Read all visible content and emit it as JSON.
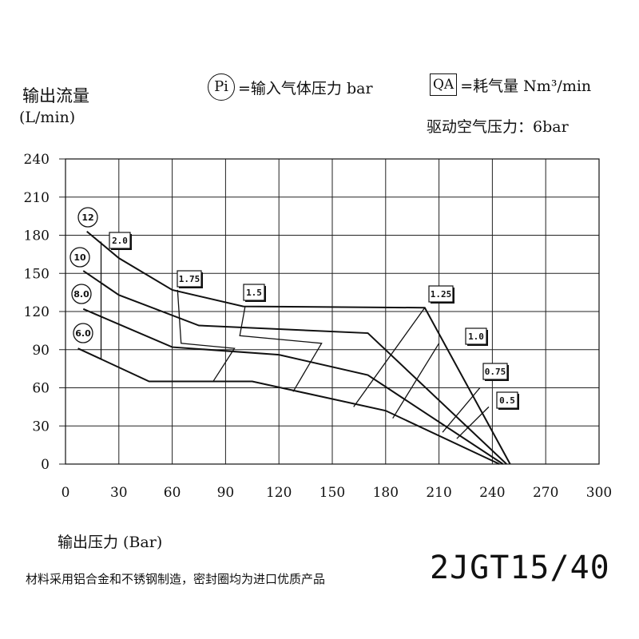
{
  "legend": {
    "pi_badge": "Pi",
    "pi_text": "=输入气体压力 bar",
    "qa_badge": "QA",
    "qa_text": "=耗气量 Nm³/min",
    "drive_pressure": "驱动空气压力：6bar"
  },
  "model": "2JGT15/40",
  "footer_note": "材料采用铝合金和不锈钢制造，密封圈均为进口优质产品",
  "chart_data": {
    "type": "line",
    "ylabel_line1": "输出流量",
    "ylabel_line2": "(L/min)",
    "xlabel": "输出压力 (Bar)",
    "xlim": [
      0,
      300
    ],
    "ylim": [
      0,
      240
    ],
    "xticks": [
      0,
      30,
      60,
      90,
      120,
      150,
      180,
      210,
      240,
      270,
      300
    ],
    "yticks": [
      0,
      30,
      60,
      90,
      120,
      150,
      180,
      210,
      240
    ],
    "grid": true,
    "series": [
      {
        "name": "12",
        "points": [
          [
            12,
            183
          ],
          [
            30,
            162
          ],
          [
            60,
            137
          ],
          [
            100,
            124
          ],
          [
            202,
            123
          ],
          [
            250,
            0
          ]
        ]
      },
      {
        "name": "10",
        "points": [
          [
            10,
            152
          ],
          [
            30,
            133
          ],
          [
            75,
            109
          ],
          [
            170,
            103
          ],
          [
            248,
            0
          ]
        ]
      },
      {
        "name": "8.0",
        "points": [
          [
            10,
            122
          ],
          [
            30,
            110
          ],
          [
            60,
            92
          ],
          [
            120,
            86
          ],
          [
            170,
            70
          ],
          [
            246,
            0
          ]
        ]
      },
      {
        "name": "6.0",
        "points": [
          [
            7,
            91
          ],
          [
            47,
            65
          ],
          [
            105,
            65
          ],
          [
            180,
            42
          ],
          [
            244,
            0
          ]
        ]
      }
    ],
    "qa_contours": [
      {
        "label": "2.0",
        "points": [
          [
            20,
            175
          ],
          [
            20,
            82
          ]
        ]
      },
      {
        "label": "1.75",
        "points": [
          [
            63,
            137
          ],
          [
            65,
            95
          ],
          [
            95,
            91
          ],
          [
            83,
            65
          ]
        ]
      },
      {
        "label": "1.5",
        "points": [
          [
            101,
            124
          ],
          [
            98,
            101
          ],
          [
            144,
            95
          ],
          [
            128,
            57
          ]
        ]
      },
      {
        "label": "1.25",
        "points": [
          [
            202,
            123
          ],
          [
            162,
            45
          ]
        ]
      },
      {
        "label": "1.0",
        "points": [
          [
            210,
            95
          ],
          [
            184,
            36
          ]
        ]
      },
      {
        "label": "0.75",
        "points": [
          [
            233,
            60
          ],
          [
            212,
            25
          ]
        ]
      },
      {
        "label": "0.5",
        "points": [
          [
            238,
            45
          ],
          [
            220,
            20
          ]
        ]
      }
    ],
    "pi_labels": [
      "12",
      "10",
      "8.0",
      "6.0"
    ],
    "qa_labels": [
      "2.0",
      "1.75",
      "1.5",
      "1.25",
      "1.0",
      "0.75",
      "0.5"
    ]
  }
}
